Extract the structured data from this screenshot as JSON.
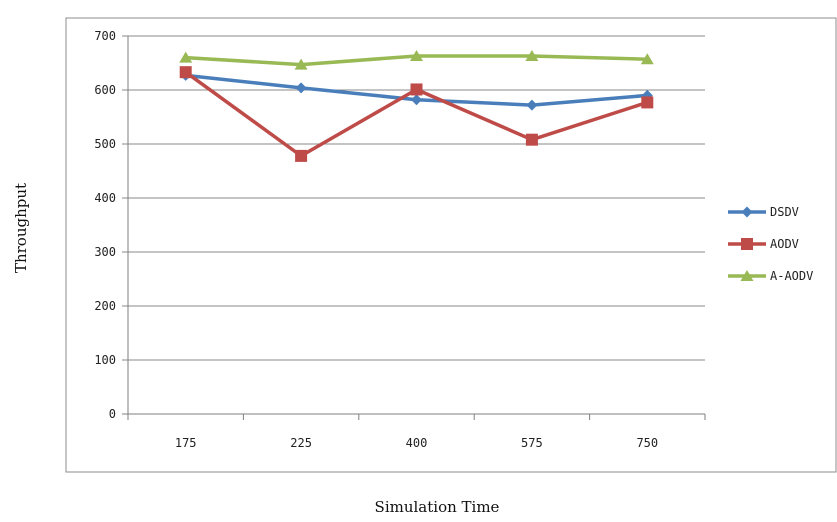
{
  "chart_data": {
    "type": "line",
    "categories": [
      "175",
      "225",
      "400",
      "575",
      "750"
    ],
    "series": [
      {
        "name": "DSDV",
        "values": [
          627,
          604,
          582,
          572,
          590
        ],
        "color": "#4a7ebb",
        "marker": "diamond"
      },
      {
        "name": "AODV",
        "values": [
          633,
          478,
          601,
          508,
          577
        ],
        "color": "#be4b48",
        "marker": "square"
      },
      {
        "name": "A-AODV",
        "values": [
          660,
          647,
          663,
          663,
          657
        ],
        "color": "#98b954",
        "marker": "triangle"
      }
    ],
    "xlabel": "Simulation Time",
    "ylabel": "Throughput",
    "ylim": [
      0,
      700
    ],
    "yticks": [
      "0",
      "100",
      "200",
      "300",
      "400",
      "500",
      "600",
      "700"
    ],
    "grid": "horizontal",
    "legend_position": "right"
  }
}
